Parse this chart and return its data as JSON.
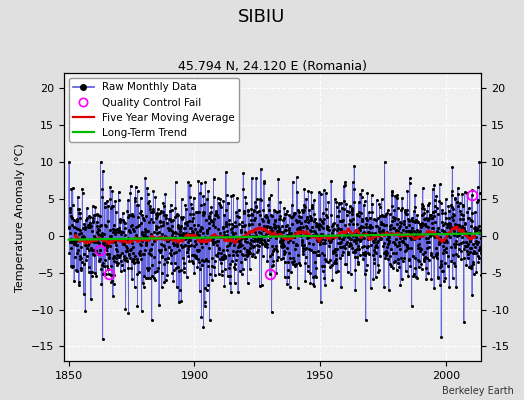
{
  "title": "SIBIU",
  "subtitle": "45.794 N, 24.120 E (Romania)",
  "ylabel": "Temperature Anomaly (°C)",
  "credit": "Berkeley Earth",
  "ylim": [
    -17,
    22
  ],
  "yticks": [
    -15,
    -10,
    -5,
    0,
    5,
    10,
    15,
    20
  ],
  "xlim": [
    1848,
    2014
  ],
  "xticks": [
    1850,
    1900,
    1950,
    2000
  ],
  "start_year": 1850,
  "end_year": 2013,
  "seed": 137,
  "bg_color": "#e0e0e0",
  "plot_bg_color": "#f0f0f0",
  "grid_color": "#ffffff",
  "raw_line_color": "#5555dd",
  "raw_marker_color": "#000000",
  "moving_avg_color": "#dd0000",
  "trend_color": "#00bb00",
  "qc_fail_color": "#ff00ff",
  "legend_loc": "upper left"
}
